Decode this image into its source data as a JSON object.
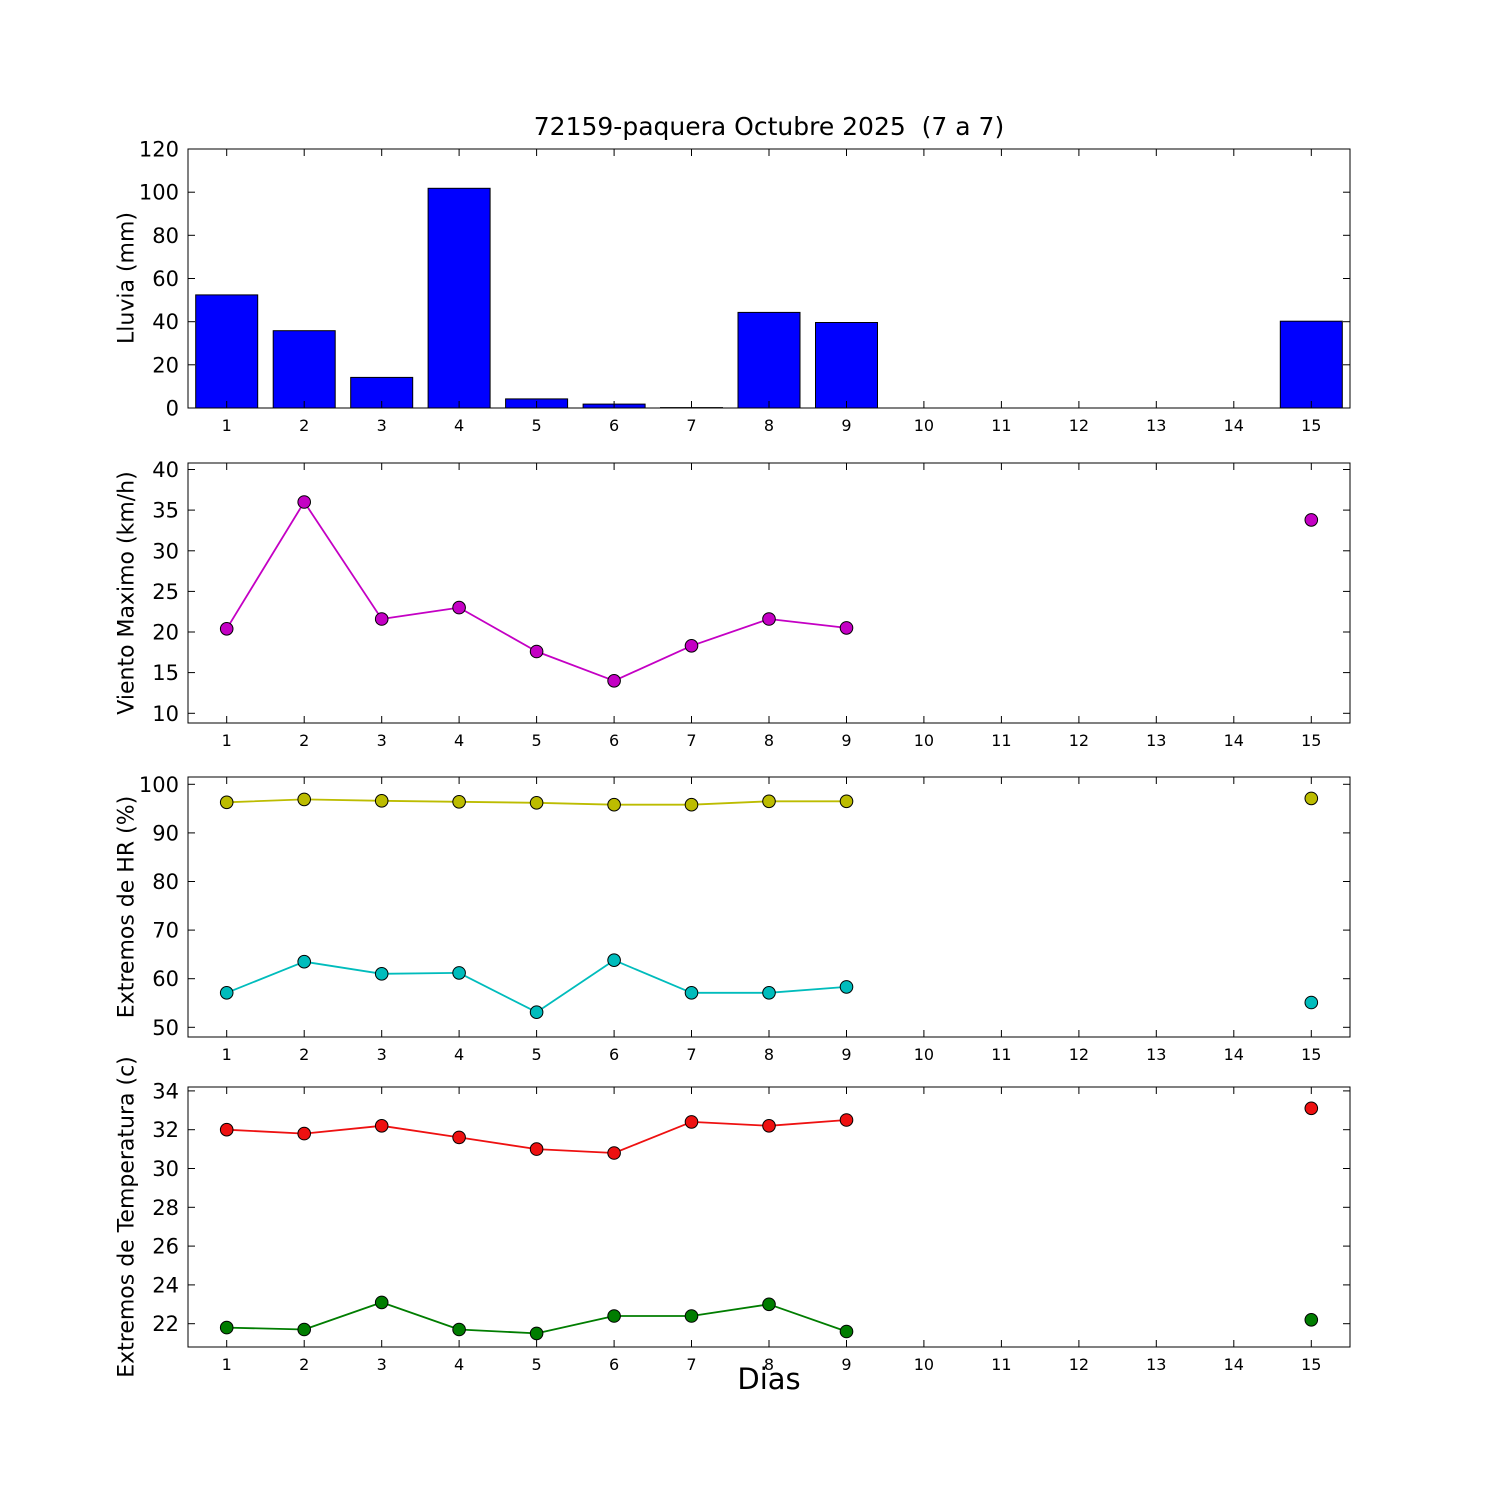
{
  "chart_data": [
    {
      "id": "lluvia",
      "type": "bar",
      "title": "72159-paquera Octubre 2025  (7 a 7)",
      "ylabel": "Lluvia (mm)",
      "categories": [
        1,
        2,
        3,
        4,
        5,
        6,
        7,
        8,
        9,
        10,
        11,
        12,
        13,
        14,
        15
      ],
      "values": [
        52.4,
        35.8,
        14.2,
        101.8,
        4.2,
        1.8,
        0.2,
        44.3,
        39.6,
        0,
        0,
        0,
        0,
        0,
        40.2
      ],
      "bar_color": "#0000ff",
      "bar_edge_color": "#000000",
      "ylim": [
        0,
        120
      ],
      "yticks": [
        0,
        20,
        40,
        60,
        80,
        100,
        120
      ],
      "xlim": [
        0.5,
        15.5
      ],
      "xticks": [
        1,
        2,
        3,
        4,
        5,
        6,
        7,
        8,
        9,
        10,
        11,
        12,
        13,
        14,
        15
      ],
      "grid": false,
      "legend": "none"
    },
    {
      "id": "viento",
      "type": "line",
      "ylabel": "Viento Maximo (km/h)",
      "x": [
        1,
        2,
        3,
        4,
        5,
        6,
        7,
        8,
        9,
        15
      ],
      "series": [
        {
          "name": "viento_maximo",
          "color": "#c400c4",
          "values": [
            20.4,
            36.0,
            21.6,
            23.0,
            17.6,
            14.0,
            18.3,
            21.6,
            20.5,
            33.8
          ]
        }
      ],
      "ylim": [
        8.8,
        40.8
      ],
      "yticks": [
        10,
        15,
        20,
        25,
        30,
        35,
        40
      ],
      "xlim": [
        0.5,
        15.5
      ],
      "xticks": [
        1,
        2,
        3,
        4,
        5,
        6,
        7,
        8,
        9,
        10,
        11,
        12,
        13,
        14,
        15
      ],
      "grid": false,
      "legend": "none"
    },
    {
      "id": "extremos_hr",
      "type": "line",
      "ylabel": "Extremos de HR (%)",
      "x": [
        1,
        2,
        3,
        4,
        5,
        6,
        7,
        8,
        9,
        15
      ],
      "series": [
        {
          "name": "hr_max",
          "color": "#bcbc00",
          "values": [
            96.3,
            96.9,
            96.6,
            96.4,
            96.2,
            95.8,
            95.8,
            96.5,
            96.5,
            97.1
          ]
        },
        {
          "name": "hr_min",
          "color": "#00bcbc",
          "values": [
            57.1,
            63.5,
            61.0,
            61.2,
            53.1,
            63.8,
            57.1,
            57.1,
            58.3,
            55.1
          ]
        }
      ],
      "ylim": [
        48.0,
        101.5
      ],
      "yticks": [
        50,
        60,
        70,
        80,
        90,
        100
      ],
      "xlim": [
        0.5,
        15.5
      ],
      "xticks": [
        1,
        2,
        3,
        4,
        5,
        6,
        7,
        8,
        9,
        10,
        11,
        12,
        13,
        14,
        15
      ],
      "grid": false,
      "legend": "none"
    },
    {
      "id": "extremos_temperatura",
      "type": "line",
      "ylabel": "Extremos de Temperatura (c)",
      "xlabel": "Dias",
      "x": [
        1,
        2,
        3,
        4,
        5,
        6,
        7,
        8,
        9,
        15
      ],
      "series": [
        {
          "name": "temp_max",
          "color": "#ee1111",
          "values": [
            32.0,
            31.8,
            32.2,
            31.6,
            31.0,
            30.8,
            32.4,
            32.2,
            32.5,
            33.1
          ]
        },
        {
          "name": "temp_min",
          "color": "#007d00",
          "values": [
            21.8,
            21.7,
            23.1,
            21.7,
            21.5,
            22.4,
            22.4,
            23.0,
            21.6,
            22.2
          ]
        }
      ],
      "ylim": [
        20.8,
        34.2
      ],
      "yticks": [
        22,
        24,
        26,
        28,
        30,
        32,
        34
      ],
      "xlim": [
        0.5,
        15.5
      ],
      "xticks": [
        1,
        2,
        3,
        4,
        5,
        6,
        7,
        8,
        9,
        10,
        11,
        12,
        13,
        14,
        15
      ],
      "grid": false,
      "legend": "none"
    }
  ]
}
